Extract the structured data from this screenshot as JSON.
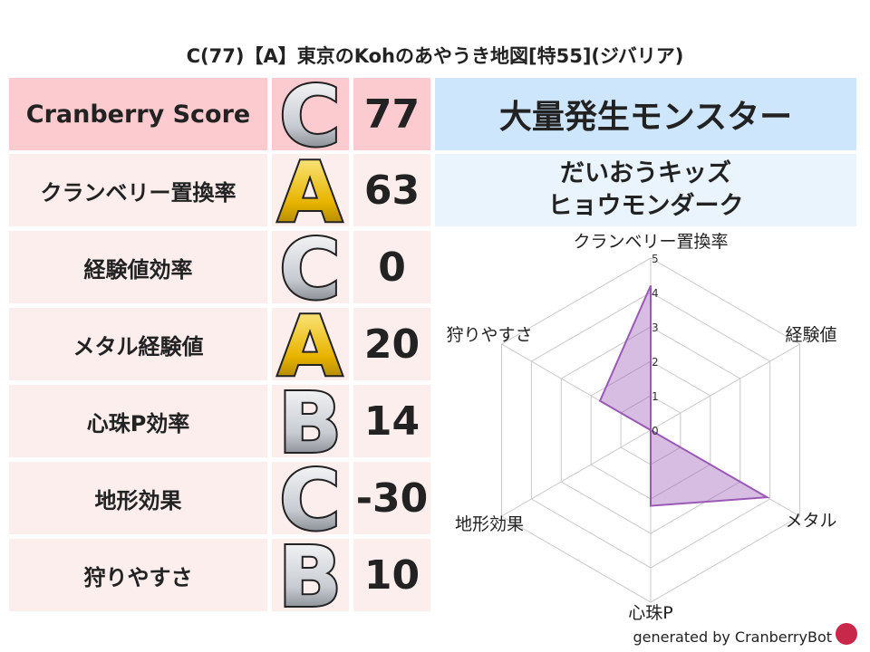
{
  "title": "C(77)【A】東京のKohのあやうき地図[特55](ジバリア)",
  "rows": [
    {
      "label": "Cranberry Score",
      "grade": "C",
      "value": "77"
    },
    {
      "label": "クランベリー置換率",
      "grade": "A",
      "value": "63"
    },
    {
      "label": "経験値効率",
      "grade": "C",
      "value": "0"
    },
    {
      "label": "メタル経験値",
      "grade": "A",
      "value": "20"
    },
    {
      "label": "心珠P効率",
      "grade": "B",
      "value": "14"
    },
    {
      "label": "地形効果",
      "grade": "C",
      "value": "-30"
    },
    {
      "label": "狩りやすさ",
      "grade": "B",
      "value": "10"
    }
  ],
  "monsters": {
    "header": "大量発生モンスター",
    "items": [
      "だいおうキッズ",
      "ヒョウモンダーク"
    ]
  },
  "chart_data": {
    "type": "radar",
    "axes": [
      "クランベリー置換率",
      "経験値",
      "メタル",
      "心珠P",
      "地形効果",
      "狩りやすさ"
    ],
    "values": [
      4.2,
      0,
      3.9,
      2.2,
      0,
      1.7
    ],
    "range": [
      0,
      5
    ],
    "ticks": [
      "0",
      "1",
      "2",
      "3",
      "4",
      "5"
    ],
    "color": "#9b59b6"
  },
  "footer": "generated by CranberryBot",
  "colors": {
    "header_row": "#fccbcf",
    "row": "#fdeeee",
    "monster_header": "#cde6fb",
    "monster_list": "#eaf4fd",
    "gold": "#e8b400",
    "silver": "#c8ccd2"
  }
}
